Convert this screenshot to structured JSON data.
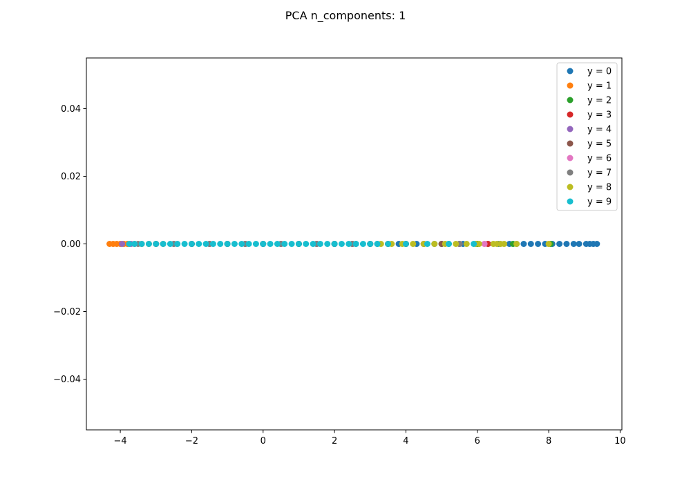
{
  "chart_data": {
    "type": "scatter",
    "title": "PCA n_components: 1",
    "xlabel": "",
    "ylabel": "",
    "xlim": [
      -4.95,
      10.05
    ],
    "ylim": [
      -0.055,
      0.055
    ],
    "xticks": [
      -4,
      -2,
      0,
      2,
      4,
      6,
      8,
      10
    ],
    "xtick_labels": [
      "−4",
      "−2",
      "0",
      "2",
      "4",
      "6",
      "8",
      "10"
    ],
    "yticks": [
      -0.04,
      -0.02,
      0.0,
      0.02,
      0.04
    ],
    "ytick_labels": [
      "−0.04",
      "−0.02",
      "0.00",
      "0.02",
      "0.04"
    ],
    "grid": false,
    "legend_position": "top-right",
    "series": [
      {
        "name": "y = 0",
        "color": "#1f77b4",
        "x": [
          2.0,
          2.6,
          3.2,
          3.8,
          4.3,
          4.8,
          5.2,
          5.6,
          6.0,
          6.3,
          6.6,
          6.9,
          7.1,
          7.3,
          7.5,
          7.7,
          7.9,
          8.1,
          8.3,
          8.5,
          8.7,
          8.85,
          9.05,
          9.15,
          9.25,
          9.35
        ],
        "y": [
          0,
          0,
          0,
          0,
          0,
          0,
          0,
          0,
          0,
          0,
          0,
          0,
          0,
          0,
          0,
          0,
          0,
          0,
          0,
          0,
          0,
          0,
          0,
          0,
          0,
          0
        ]
      },
      {
        "name": "y = 1",
        "color": "#ff7f0e",
        "x": [
          -4.3,
          -4.2,
          -4.1,
          -4.0,
          -3.9,
          -3.8,
          -3.6,
          -3.4,
          -3.2,
          -3.0,
          -2.8
        ],
        "y": [
          0,
          0,
          0,
          0,
          0,
          0,
          0,
          0,
          0,
          0,
          0
        ]
      },
      {
        "name": "y = 2",
        "color": "#2ca02c",
        "x": [
          -2.0,
          -1.0,
          0.0,
          1.0,
          2.0,
          3.0,
          4.0,
          5.0,
          6.0,
          7.0,
          8.05
        ],
        "y": [
          0,
          0,
          0,
          0,
          0,
          0,
          0,
          0,
          0,
          0,
          0
        ]
      },
      {
        "name": "y = 3",
        "color": "#d62728",
        "x": [
          -1.5,
          -0.5,
          0.5,
          1.5,
          2.5,
          3.5,
          4.5,
          5.5,
          6.3
        ],
        "y": [
          0,
          0,
          0,
          0,
          0,
          0,
          0,
          0,
          0
        ]
      },
      {
        "name": "y = 4",
        "color": "#9467bd",
        "x": [
          -3.95,
          -3.7,
          -3.0,
          -2.0,
          -1.0,
          0.0,
          1.0,
          2.0,
          3.0,
          4.0
        ],
        "y": [
          0,
          0,
          0,
          0,
          0,
          0,
          0,
          0,
          0,
          0
        ]
      },
      {
        "name": "y = 5",
        "color": "#8c564b",
        "x": [
          -3.0,
          -2.0,
          -1.0,
          0.0,
          1.0,
          2.0,
          3.0,
          4.0,
          5.0
        ],
        "y": [
          0,
          0,
          0,
          0,
          0,
          0,
          0,
          0,
          0
        ]
      },
      {
        "name": "y = 6",
        "color": "#e377c2",
        "x": [
          -2.5,
          -1.5,
          -0.5,
          0.5,
          1.5,
          2.5,
          3.5,
          4.5,
          5.5,
          6.2
        ],
        "y": [
          0,
          0,
          0,
          0,
          0,
          0,
          0,
          0,
          0,
          0
        ]
      },
      {
        "name": "y = 7",
        "color": "#7f7f7f",
        "x": [
          -3.5,
          -2.5,
          -1.5,
          -0.5,
          0.5,
          1.5,
          2.5,
          3.5,
          4.5,
          5.5
        ],
        "y": [
          0,
          0,
          0,
          0,
          0,
          0,
          0,
          0,
          0,
          0
        ]
      },
      {
        "name": "y = 8",
        "color": "#bcbd22",
        "x": [
          3.3,
          3.6,
          3.9,
          4.2,
          4.5,
          4.8,
          5.1,
          5.4,
          5.7,
          5.95,
          6.05,
          6.45,
          6.55,
          6.65,
          6.75,
          7.1,
          8.0
        ],
        "y": [
          0,
          0,
          0,
          0,
          0,
          0,
          0,
          0,
          0,
          0,
          0,
          0,
          0,
          0,
          0,
          0,
          0
        ]
      },
      {
        "name": "y = 9",
        "color": "#17becf",
        "x": [
          -3.75,
          -3.6,
          -3.4,
          -3.2,
          -3.0,
          -2.8,
          -2.6,
          -2.4,
          -2.2,
          -2.0,
          -1.8,
          -1.6,
          -1.4,
          -1.2,
          -1.0,
          -0.8,
          -0.6,
          -0.4,
          -0.2,
          0.0,
          0.2,
          0.4,
          0.6,
          0.8,
          1.0,
          1.2,
          1.4,
          1.6,
          1.8,
          2.0,
          2.2,
          2.4,
          2.6,
          2.8,
          3.0,
          3.2,
          3.5,
          4.0,
          4.6,
          5.2,
          5.9
        ],
        "y": [
          0,
          0,
          0,
          0,
          0,
          0,
          0,
          0,
          0,
          0,
          0,
          0,
          0,
          0,
          0,
          0,
          0,
          0,
          0,
          0,
          0,
          0,
          0,
          0,
          0,
          0,
          0,
          0,
          0,
          0,
          0,
          0,
          0,
          0,
          0,
          0,
          0,
          0,
          0,
          0,
          0
        ]
      }
    ]
  }
}
